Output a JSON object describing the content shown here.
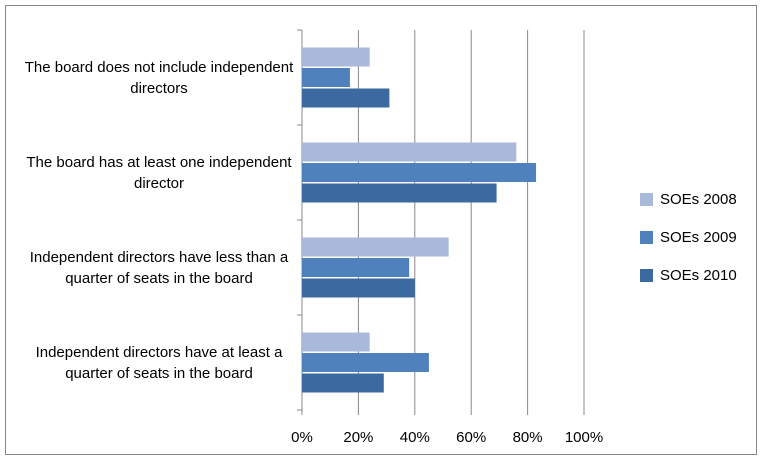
{
  "chart_data": {
    "type": "hbar",
    "categories": [
      "The board does not include independent directors",
      "The board has at least one independent director",
      "Independent directors have less than a quarter of seats in the board",
      "Independent directors have at least a quarter of seats in the board"
    ],
    "series": [
      {
        "name": "SOEs 2008",
        "color": "#a9b9da",
        "values": [
          24,
          76,
          52,
          24
        ]
      },
      {
        "name": "SOEs 2009",
        "color": "#4f81bd",
        "values": [
          17,
          83,
          38,
          45
        ]
      },
      {
        "name": "SOEs 2010",
        "color": "#3c6aa0",
        "values": [
          31,
          69,
          40,
          29
        ]
      }
    ],
    "xlim": [
      0,
      100
    ],
    "xticks": [
      {
        "value": 0,
        "label": "0%"
      },
      {
        "value": 20,
        "label": "20%"
      },
      {
        "value": 40,
        "label": "40%"
      },
      {
        "value": 60,
        "label": "60%"
      },
      {
        "value": 80,
        "label": "80%"
      },
      {
        "value": 100,
        "label": "100%"
      }
    ],
    "grid": true,
    "legend": "right"
  }
}
